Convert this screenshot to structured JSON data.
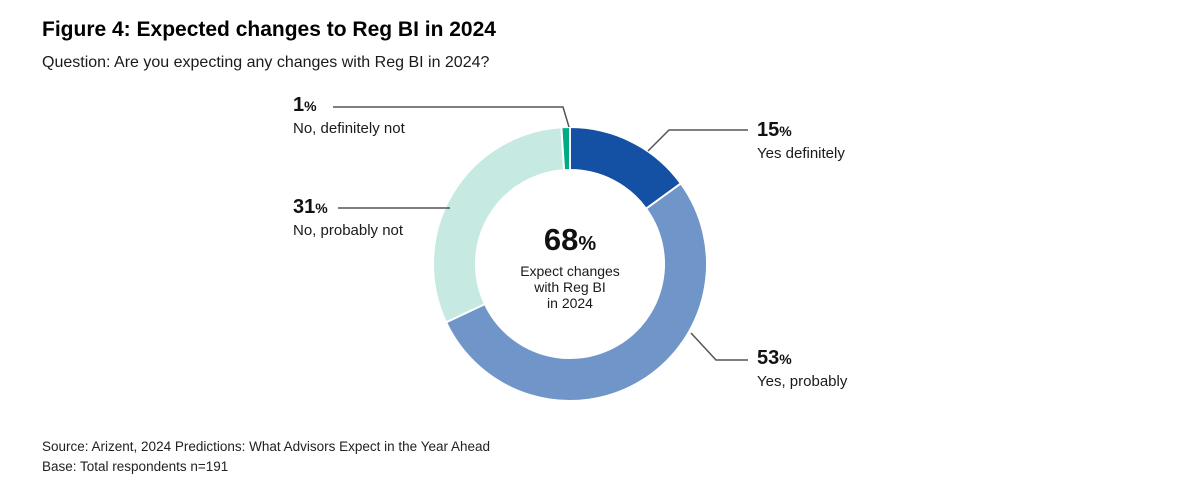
{
  "header": {
    "title": "Figure 4: Expected changes to Reg BI in 2024",
    "question": "Question: Are you expecting any changes with Reg BI in 2024?"
  },
  "percent_sign": "%",
  "chart_data": {
    "type": "pie",
    "subtype": "donut",
    "title": "Expected changes to Reg BI in 2024",
    "units": "percent of respondents",
    "direction": "clockwise",
    "start_angle_deg": 0,
    "segments": [
      {
        "label": "Yes definitely",
        "value": 15,
        "color": "#1450a3"
      },
      {
        "label": "Yes, probably",
        "value": 53,
        "color": "#7095c8"
      },
      {
        "label": "No, probably not",
        "value": 31,
        "color": "#c6e9e1"
      },
      {
        "label": "No, definitely not",
        "value": 1,
        "color": "#00aa82"
      }
    ],
    "center_label": {
      "value": 68,
      "lines": [
        "Expect changes",
        "with Reg BI",
        "in 2024"
      ]
    }
  },
  "footer": {
    "source": "Source: Arizent, 2024 Predictions: What Advisors Expect in the Year Ahead",
    "base": "Base: Total respondents n=191"
  }
}
